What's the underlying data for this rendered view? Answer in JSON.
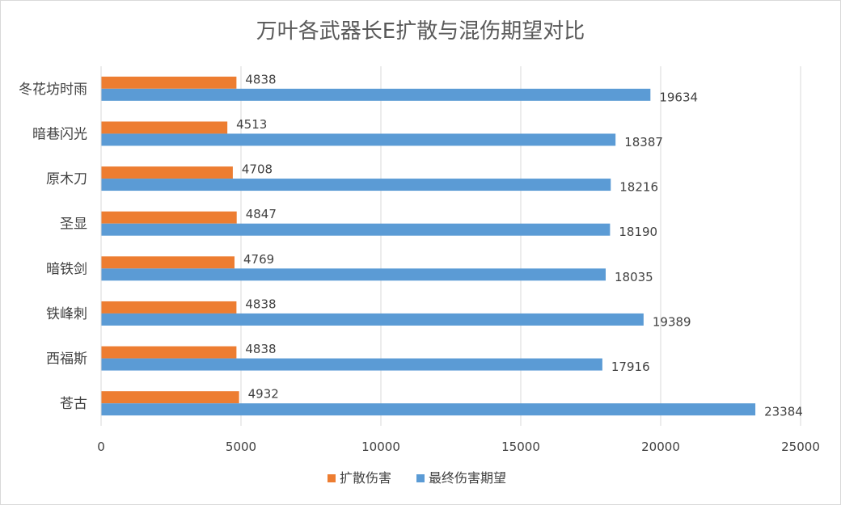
{
  "chart_data": {
    "type": "bar",
    "orientation": "horizontal",
    "title": "万叶各武器长E扩散与混伤期望对比",
    "categories": [
      "冬花坊时雨",
      "暗巷闪光",
      "原木刀",
      "圣显",
      "暗铁剑",
      "铁峰刺",
      "西福斯",
      "苍古"
    ],
    "series": [
      {
        "name": "扩散伤害",
        "color": "#ed7d31",
        "values": [
          4838,
          4513,
          4708,
          4847,
          4769,
          4838,
          4838,
          4932
        ]
      },
      {
        "name": "最终伤害期望",
        "color": "#5b9bd5",
        "values": [
          19634,
          18387,
          18216,
          18190,
          18035,
          19389,
          17916,
          23384
        ]
      }
    ],
    "xlim": [
      0,
      25000
    ],
    "xticks": [
      0,
      5000,
      10000,
      15000,
      20000,
      25000
    ],
    "xlabel": "",
    "ylabel": "",
    "grid": true,
    "legend_position": "bottom"
  }
}
